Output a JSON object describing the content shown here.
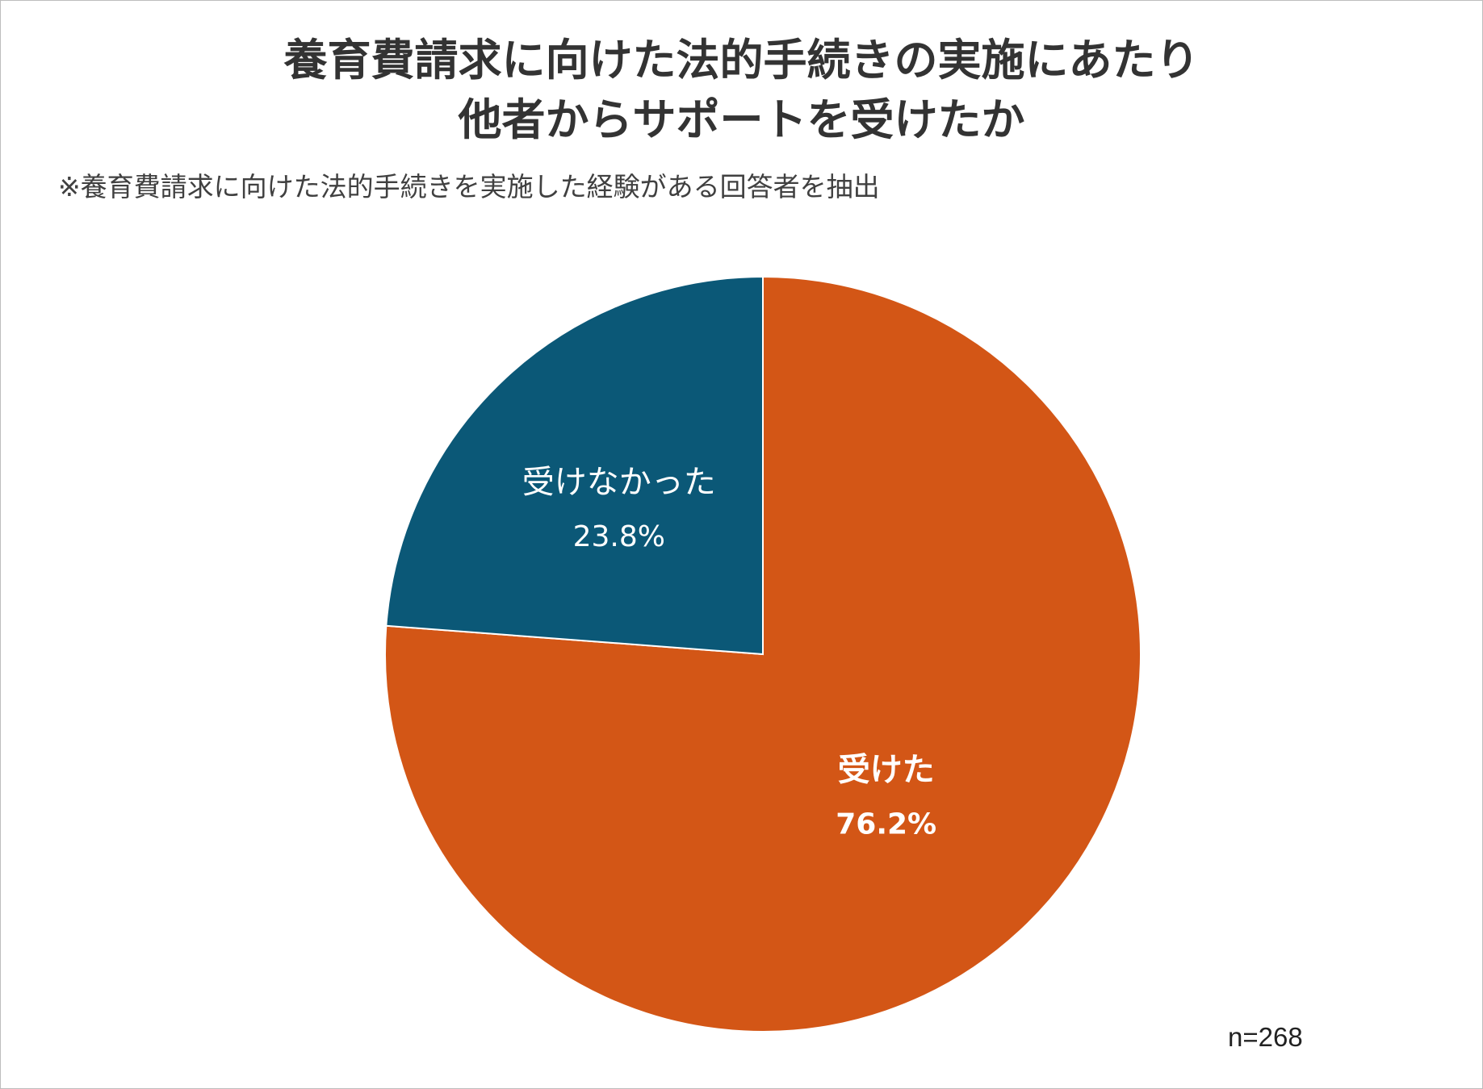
{
  "title": {
    "line1": "養育費請求に向けた法的手続きの実施にあたり",
    "line2": "他者からサポートを受けたか"
  },
  "subtitle": "※養育費請求に向けた法的手続きを実施した経験がある回答者を抽出",
  "note": "n=268",
  "chart_data": {
    "type": "pie",
    "title": "養育費請求に向けた法的手続きの実施にあたり 他者からサポートを受けたか",
    "start": "12 o'clock",
    "direction": "clockwise",
    "slices": [
      {
        "label": "受けた",
        "value": 76.2,
        "value_label": "76.2%",
        "color": "#D35616",
        "label_weight": "bold"
      },
      {
        "label": "受けなかった",
        "value": 23.8,
        "value_label": "23.8%",
        "color": "#0B5877",
        "label_weight": "normal"
      }
    ],
    "legend": "none",
    "n": 268
  }
}
